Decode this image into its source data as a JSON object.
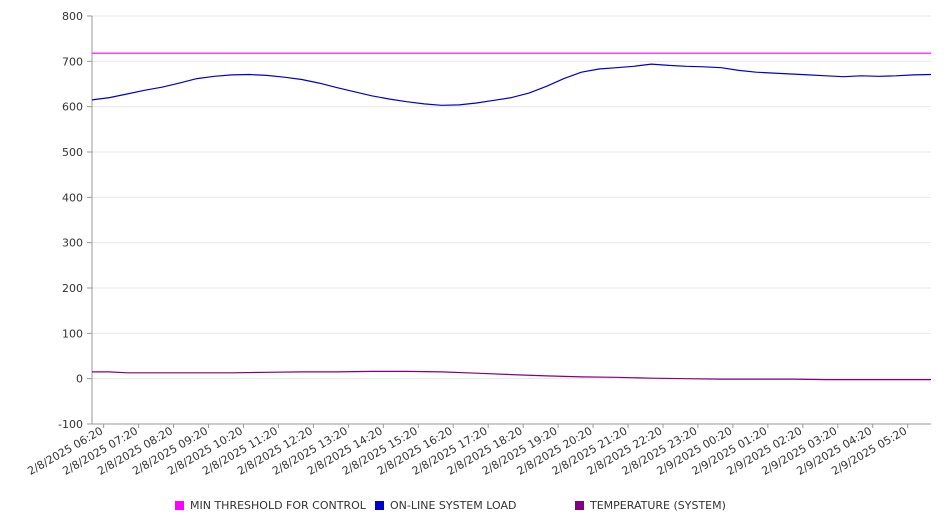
{
  "chart_data": {
    "type": "line",
    "ylim": [
      -100,
      800
    ],
    "yticks": [
      -100,
      0,
      100,
      200,
      300,
      400,
      500,
      600,
      700,
      800
    ],
    "xlim": [
      "2/8/2025 06:00",
      "2/9/2025 06:00"
    ],
    "xticks": [
      "2/8/2025 06:20",
      "2/8/2025 07:20",
      "2/8/2025 08:20",
      "2/8/2025 09:20",
      "2/8/2025 10:20",
      "2/8/2025 11:20",
      "2/8/2025 12:20",
      "2/8/2025 13:20",
      "2/8/2025 14:20",
      "2/8/2025 15:20",
      "2/8/2025 16:20",
      "2/8/2025 17:20",
      "2/8/2025 18:20",
      "2/8/2025 19:20",
      "2/8/2025 20:20",
      "2/8/2025 21:20",
      "2/8/2025 22:20",
      "2/8/2025 23:20",
      "2/9/2025 00:20",
      "2/9/2025 01:20",
      "2/9/2025 02:20",
      "2/9/2025 03:20",
      "2/9/2025 04:20",
      "2/9/2025 05:20"
    ],
    "grid": true,
    "legend_position": "bottom",
    "series": [
      {
        "name": "MIN THRESHOLD FOR CONTROL",
        "color": "#ff00ff",
        "x": [
          "2/8/2025 06:00",
          "2/9/2025 06:00"
        ],
        "values": [
          718,
          718
        ]
      },
      {
        "name": "ON-LINE SYSTEM LOAD",
        "color": "#0000cc",
        "x": [
          "2/8/2025 06:00",
          "2/8/2025 06:30",
          "2/8/2025 07:00",
          "2/8/2025 07:30",
          "2/8/2025 08:00",
          "2/8/2025 08:30",
          "2/8/2025 09:00",
          "2/8/2025 09:30",
          "2/8/2025 10:00",
          "2/8/2025 10:30",
          "2/8/2025 11:00",
          "2/8/2025 11:30",
          "2/8/2025 12:00",
          "2/8/2025 12:30",
          "2/8/2025 13:00",
          "2/8/2025 13:30",
          "2/8/2025 14:00",
          "2/8/2025 14:30",
          "2/8/2025 15:00",
          "2/8/2025 15:30",
          "2/8/2025 16:00",
          "2/8/2025 16:30",
          "2/8/2025 17:00",
          "2/8/2025 17:30",
          "2/8/2025 18:00",
          "2/8/2025 18:30",
          "2/8/2025 19:00",
          "2/8/2025 19:30",
          "2/8/2025 20:00",
          "2/8/2025 20:30",
          "2/8/2025 21:00",
          "2/8/2025 21:30",
          "2/8/2025 22:00",
          "2/8/2025 22:30",
          "2/8/2025 23:00",
          "2/8/2025 23:30",
          "2/9/2025 00:00",
          "2/9/2025 00:30",
          "2/9/2025 01:00",
          "2/9/2025 01:30",
          "2/9/2025 02:00",
          "2/9/2025 02:30",
          "2/9/2025 03:00",
          "2/9/2025 03:30",
          "2/9/2025 04:00",
          "2/9/2025 04:30",
          "2/9/2025 05:00",
          "2/9/2025 05:30",
          "2/9/2025 06:00"
        ],
        "values": [
          615,
          620,
          628,
          636,
          643,
          652,
          662,
          667,
          670,
          671,
          669,
          665,
          660,
          652,
          642,
          633,
          624,
          617,
          611,
          606,
          603,
          604,
          608,
          614,
          620,
          630,
          645,
          662,
          676,
          683,
          686,
          689,
          694,
          691,
          689,
          688,
          686,
          680,
          676,
          674,
          672,
          670,
          668,
          666,
          668,
          667,
          668,
          670,
          671
        ]
      },
      {
        "name": "TEMPERATURE (SYSTEM)",
        "color": "#800080",
        "x": [
          "2/8/2025 06:00",
          "2/8/2025 06:30",
          "2/8/2025 07:00",
          "2/8/2025 08:00",
          "2/8/2025 09:00",
          "2/8/2025 10:00",
          "2/8/2025 11:00",
          "2/8/2025 12:00",
          "2/8/2025 13:00",
          "2/8/2025 14:00",
          "2/8/2025 15:00",
          "2/8/2025 16:00",
          "2/8/2025 17:00",
          "2/8/2025 18:00",
          "2/8/2025 19:00",
          "2/8/2025 20:00",
          "2/8/2025 21:00",
          "2/8/2025 22:00",
          "2/8/2025 23:00",
          "2/9/2025 00:00",
          "2/9/2025 01:00",
          "2/9/2025 02:00",
          "2/9/2025 03:00",
          "2/9/2025 04:00",
          "2/9/2025 05:00",
          "2/9/2025 06:00"
        ],
        "values": [
          15,
          15,
          13,
          13,
          13,
          13,
          14,
          15,
          15,
          16,
          16,
          15,
          12,
          9,
          6,
          4,
          3,
          1,
          0,
          -1,
          -1,
          -1,
          -2,
          -2,
          -2,
          -2
        ]
      }
    ]
  }
}
